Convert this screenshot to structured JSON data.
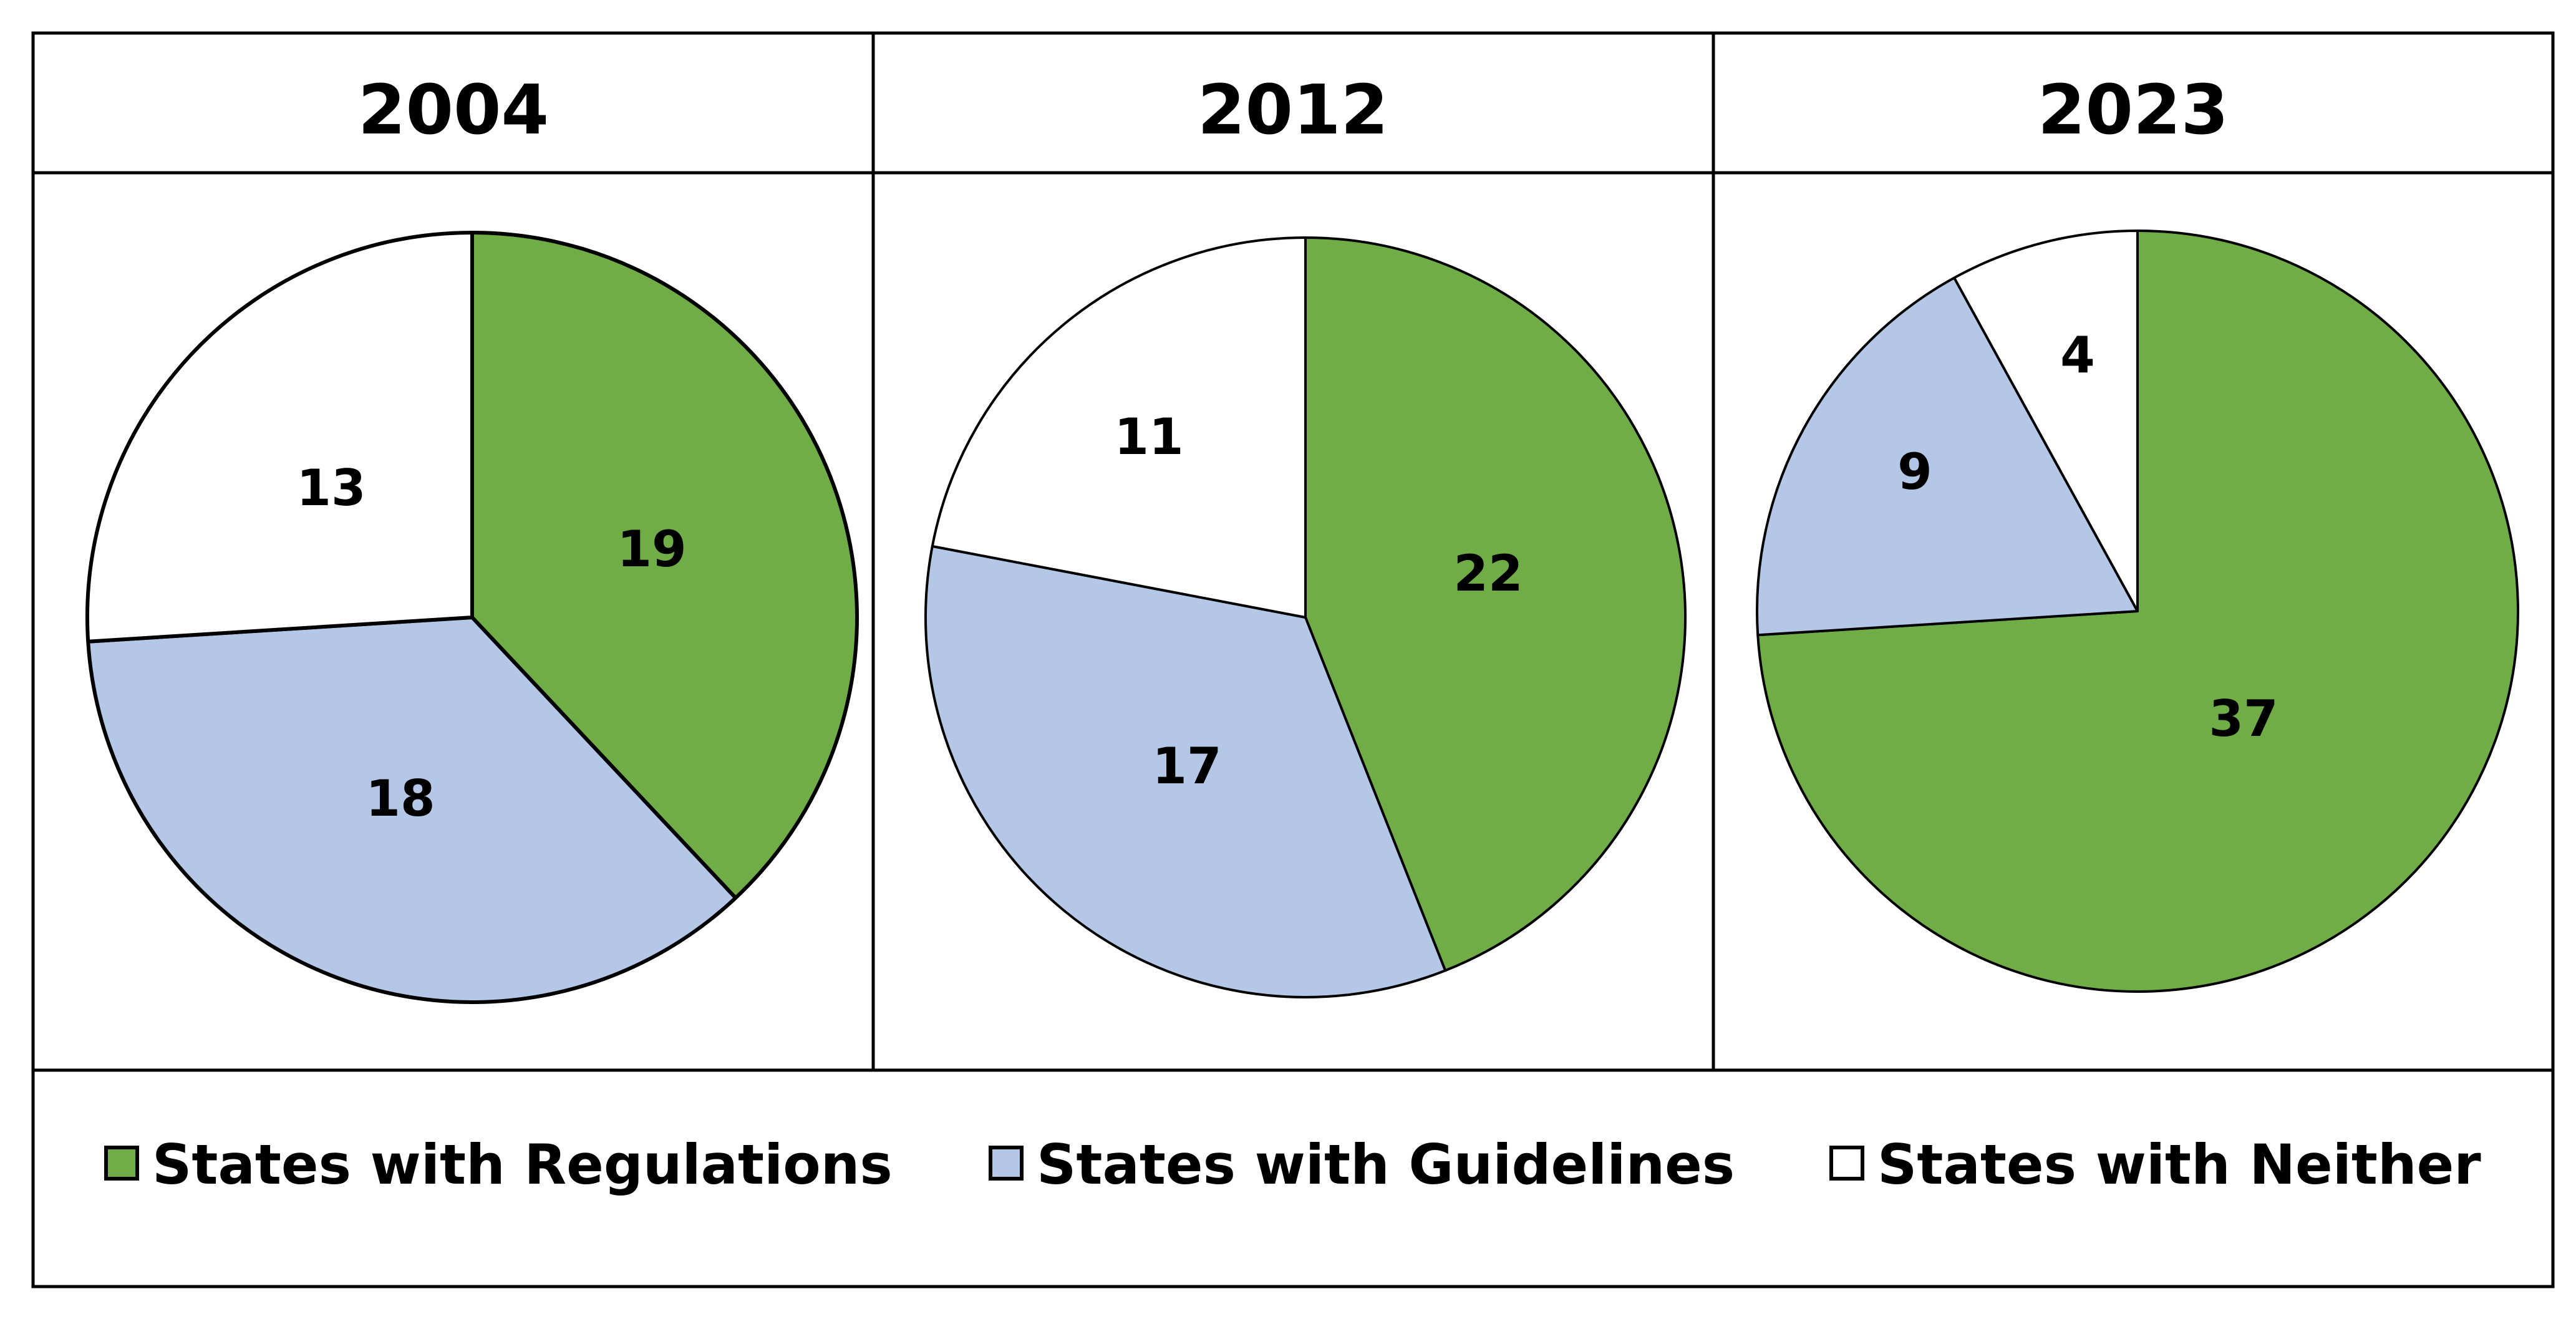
{
  "chart_data": [
    {
      "type": "pie",
      "title": "2004",
      "slices": [
        {
          "label": "States with Regulations",
          "value": 19
        },
        {
          "label": "States with Guidelines",
          "value": 18
        },
        {
          "label": "States with Neither",
          "value": 13
        }
      ]
    },
    {
      "type": "pie",
      "title": "2012",
      "slices": [
        {
          "label": "States with Regulations",
          "value": 22
        },
        {
          "label": "States with Guidelines",
          "value": 17
        },
        {
          "label": "States with Neither",
          "value": 11
        }
      ]
    },
    {
      "type": "pie",
      "title": "2023",
      "slices": [
        {
          "label": "States with Regulations",
          "value": 37
        },
        {
          "label": "States with Guidelines",
          "value": 9
        },
        {
          "label": "States with Neither",
          "value": 4
        }
      ]
    }
  ],
  "legend": [
    {
      "label": "States with Regulations",
      "color": "#70AD47"
    },
    {
      "label": "States with Guidelines",
      "color": "#B4C7E7"
    },
    {
      "label": "States with Neither",
      "color": "#FFFFFF"
    }
  ],
  "colors": {
    "regulations": "#70AD47",
    "guidelines": "#B4C7E7",
    "neither": "#FFFFFF",
    "border": "#000000"
  }
}
